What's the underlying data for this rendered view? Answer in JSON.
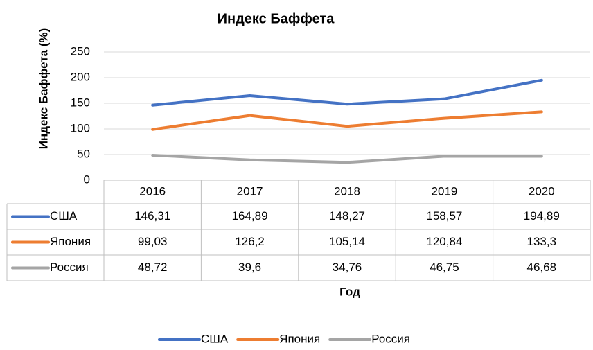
{
  "chart_data": {
    "type": "line",
    "title": "Индекс Баффета",
    "x_label": "Год",
    "y_label": "Индекс Баффета (%)",
    "categories": [
      "2016",
      "2017",
      "2018",
      "2019",
      "2020"
    ],
    "series": [
      {
        "name": "США",
        "color": "#4472c4",
        "values": [
          146.31,
          164.89,
          148.27,
          158.57,
          194.89
        ],
        "value_labels": [
          "146,31",
          "164,89",
          "148,27",
          "158,57",
          "194,89"
        ]
      },
      {
        "name": "Япония",
        "color": "#ed7d31",
        "values": [
          99.03,
          126.2,
          105.14,
          120.84,
          133.3
        ],
        "value_labels": [
          "99,03",
          "126,2",
          "105,14",
          "120,84",
          "133,3"
        ]
      },
      {
        "name": "Россия",
        "color": "#a5a5a5",
        "values": [
          48.72,
          39.6,
          34.76,
          46.75,
          46.68
        ],
        "value_labels": [
          "48,72",
          "39,6",
          "34,76",
          "46,75",
          "46,68"
        ]
      }
    ],
    "ylim": [
      0,
      250
    ],
    "yticks": [
      0,
      50,
      100,
      150,
      200,
      250
    ],
    "grid": true,
    "legend": "bottom",
    "data_table": true
  }
}
